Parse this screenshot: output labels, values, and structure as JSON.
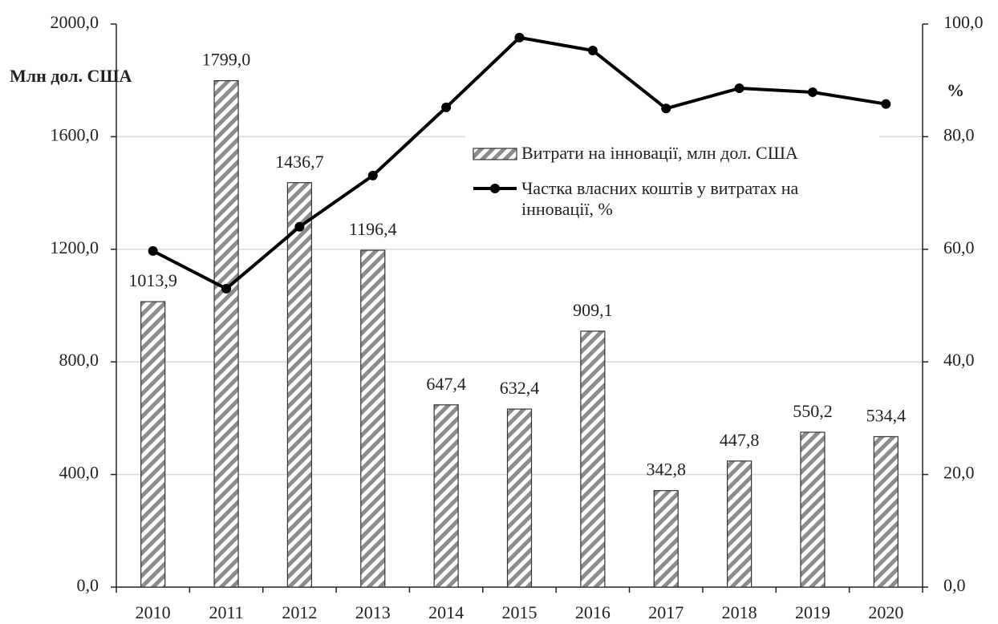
{
  "chart_data": {
    "type": "bar_line",
    "y_label": "Млн дол. США",
    "y2_label": "%",
    "categories": [
      "2010",
      "2011",
      "2012",
      "2013",
      "2014",
      "2015",
      "2016",
      "2017",
      "2018",
      "2019",
      "2020"
    ],
    "series": [
      {
        "name": "Витрати на інновації,  млн дол. США",
        "type": "bar",
        "color": "#8c8c8c",
        "values": [
          1013.9,
          1799.0,
          1436.7,
          1196.4,
          647.4,
          632.4,
          909.1,
          342.8,
          447.8,
          550.2,
          534.4
        ],
        "value_labels": [
          "1013,9",
          "1799,0",
          "1436,7",
          "1196,4",
          "647,4",
          "632,4",
          "909,1",
          "342,8",
          "447,8",
          "550,2",
          "534,4"
        ]
      },
      {
        "name": "Частка власних коштів у витратах на інновації,  %",
        "type": "line",
        "color": "#000000",
        "axis": "y2",
        "values": [
          59.7,
          53.0,
          64.0,
          73.1,
          85.2,
          97.6,
          95.3,
          85.0,
          88.6,
          87.9,
          85.8
        ]
      }
    ],
    "ylim": [
      0,
      2000
    ],
    "yticks": [
      {
        "value": 0,
        "label": "0,0"
      },
      {
        "value": 400,
        "label": "400,0"
      },
      {
        "value": 800,
        "label": "800,0"
      },
      {
        "value": 1200,
        "label": "1200,0"
      },
      {
        "value": 1600,
        "label": "1600,0"
      },
      {
        "value": 2000,
        "label": "2000,0"
      }
    ],
    "y2lim": [
      0,
      100
    ],
    "y2ticks": [
      {
        "value": 0,
        "label": "0,0"
      },
      {
        "value": 20,
        "label": "20,0"
      },
      {
        "value": 40,
        "label": "40,0"
      },
      {
        "value": 60,
        "label": "60,0"
      },
      {
        "value": 80,
        "label": "80,0"
      },
      {
        "value": 100,
        "label": "100,0"
      }
    ],
    "grid": true,
    "legend": "right"
  }
}
